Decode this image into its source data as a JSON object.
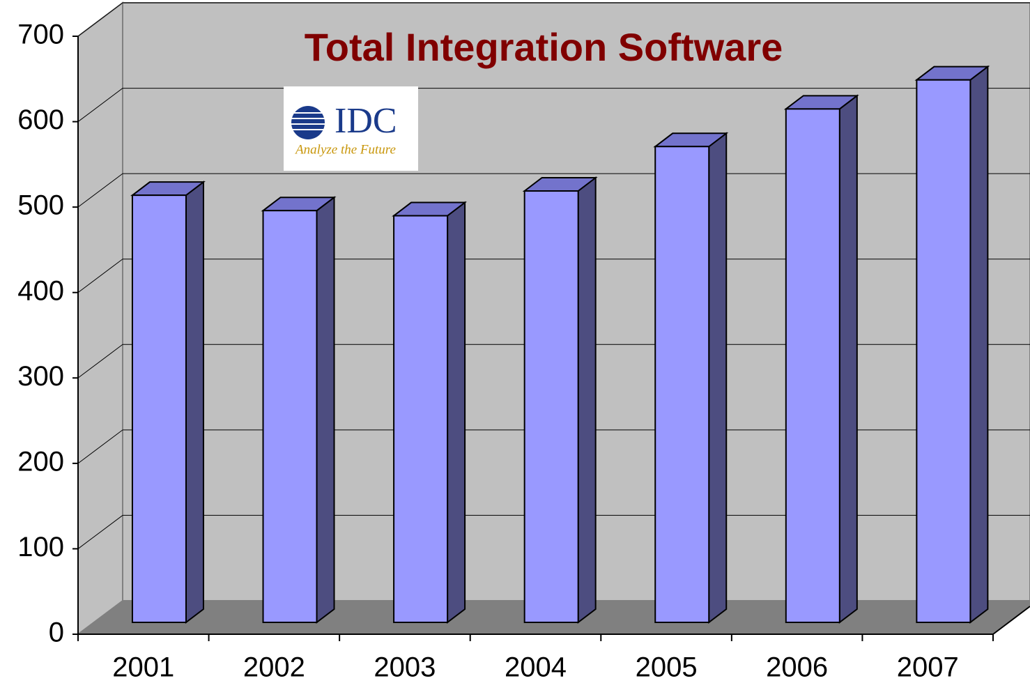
{
  "chart_data": {
    "type": "bar3d",
    "title": "Total Integration Software",
    "categories": [
      "2001",
      "2002",
      "2003",
      "2004",
      "2005",
      "2006",
      "2007"
    ],
    "values": [
      500,
      482,
      476,
      505,
      557,
      601,
      635
    ],
    "color": "#9999ff",
    "ylim": [
      0,
      700
    ],
    "yticks": [
      0,
      100,
      200,
      300,
      400,
      500,
      600,
      700
    ],
    "grid": true,
    "logo": {
      "name": "IDC",
      "tagline": "Analyze the Future"
    }
  }
}
